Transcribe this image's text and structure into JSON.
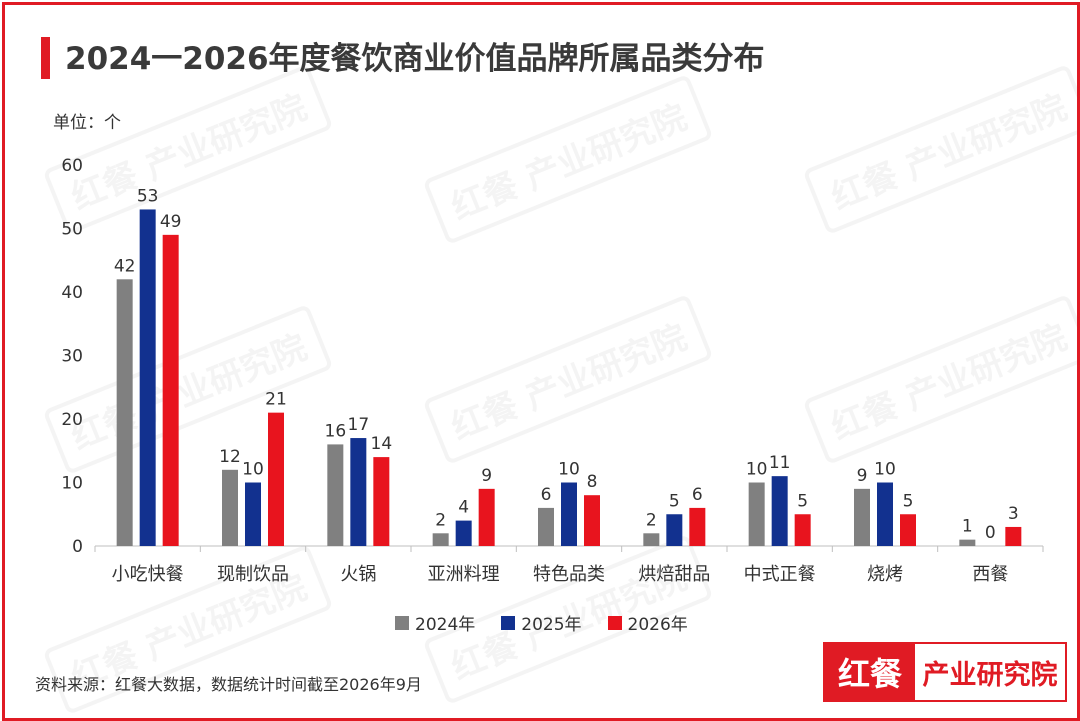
{
  "title": "2024一2026年度餐饮商业价值品牌所属品类分布",
  "unit_label": "单位：个",
  "source": "资料来源：红餐大数据，数据统计时间截至2026年9月",
  "logo": {
    "left": "红餐",
    "right": "产业研究院"
  },
  "watermark_text": "红餐 产业研究院",
  "colors": {
    "accent": "#e01b24",
    "y2024": "#808080",
    "y2025": "#12318f",
    "y2026": "#e8141e"
  },
  "chart_data": {
    "type": "bar",
    "categories": [
      "小吃快餐",
      "现制饮品",
      "火锅",
      "亚洲料理",
      "特色品类",
      "烘焙甜品",
      "中式正餐",
      "烧烤",
      "西餐"
    ],
    "series": [
      {
        "name": "2024年",
        "values": [
          42,
          12,
          16,
          2,
          6,
          2,
          10,
          9,
          1
        ]
      },
      {
        "name": "2025年",
        "values": [
          53,
          10,
          17,
          4,
          10,
          5,
          11,
          10,
          0
        ]
      },
      {
        "name": "2026年",
        "values": [
          49,
          21,
          14,
          9,
          8,
          6,
          5,
          5,
          3
        ]
      }
    ],
    "yticks": [
      0,
      10,
      20,
      30,
      40,
      50,
      60
    ],
    "ylim": [
      0,
      60
    ],
    "grid": false,
    "legend_position": "bottom"
  }
}
